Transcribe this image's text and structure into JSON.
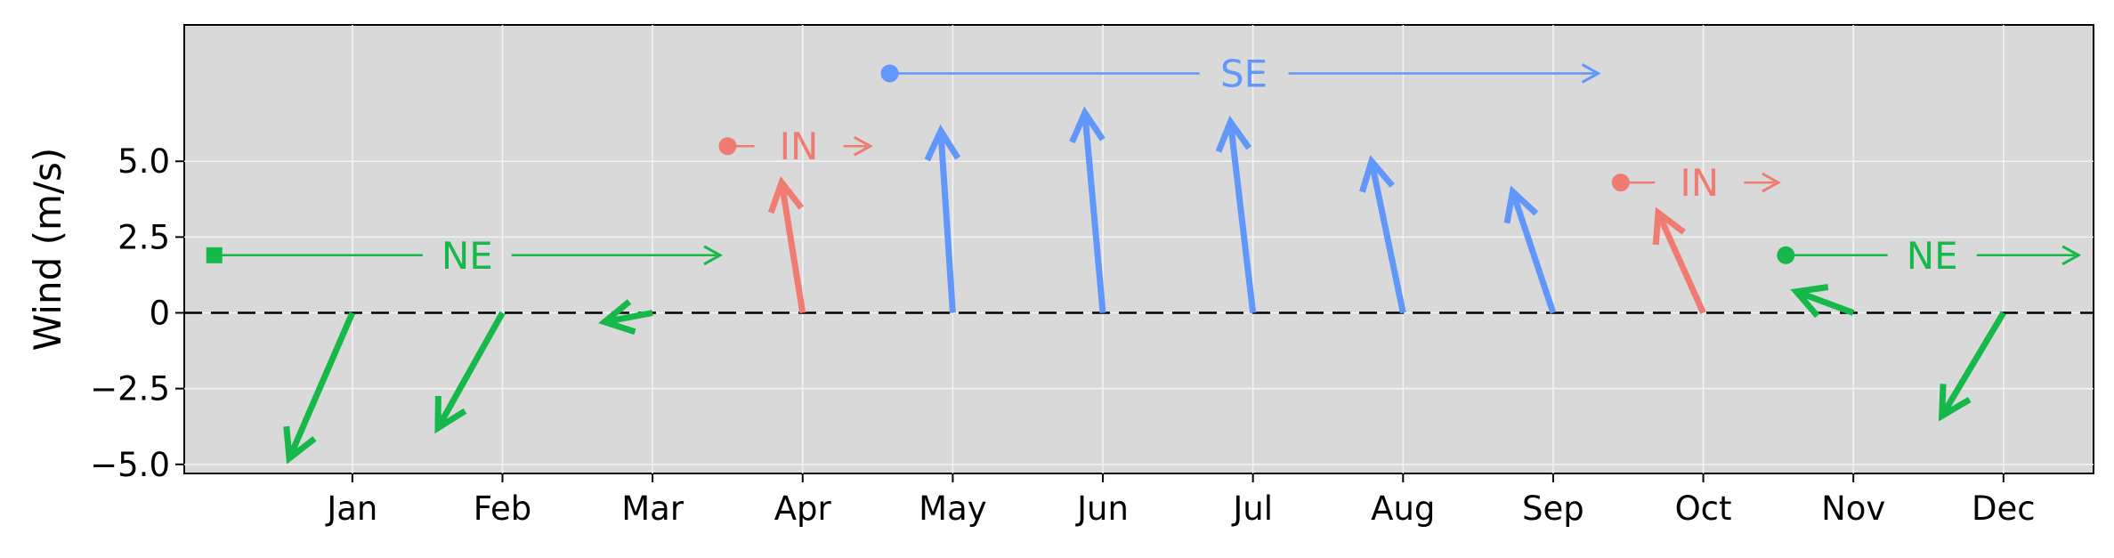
{
  "chart_data": {
    "type": "vector",
    "ylabel": "Wind (m/s)",
    "xlabel": "",
    "ylim": [
      -5.3,
      9.5
    ],
    "xlim": [
      -0.12,
      12.6
    ],
    "yticks": [
      {
        "value": 5.0,
        "label": "5.0"
      },
      {
        "value": 2.5,
        "label": "2.5"
      },
      {
        "value": 0,
        "label": "0"
      },
      {
        "value": -2.5,
        "label": "−2.5"
      },
      {
        "value": -5.0,
        "label": "−5.0"
      }
    ],
    "months": [
      "Jan",
      "Feb",
      "Mar",
      "Apr",
      "May",
      "Jun",
      "Jul",
      "Aug",
      "Sep",
      "Oct",
      "Nov",
      "Dec"
    ],
    "zero_line": "dashed",
    "grid": true,
    "season_colors": {
      "NE": "#17b84a",
      "IN": "#f07b72",
      "SE": "#6196fa"
    },
    "vectors": [
      {
        "month": "Jan",
        "u": -0.42,
        "v": -4.8,
        "season": "NE"
      },
      {
        "month": "Feb",
        "u": -0.43,
        "v": -3.8,
        "season": "NE"
      },
      {
        "month": "Mar",
        "u": -0.32,
        "v": -0.3,
        "season": "NE"
      },
      {
        "month": "Apr",
        "u": -0.14,
        "v": 4.3,
        "season": "IN"
      },
      {
        "month": "May",
        "u": -0.08,
        "v": 6.0,
        "season": "SE"
      },
      {
        "month": "Jun",
        "u": -0.12,
        "v": 6.6,
        "season": "SE"
      },
      {
        "month": "Jul",
        "u": -0.15,
        "v": 6.3,
        "season": "SE"
      },
      {
        "month": "Aug",
        "u": -0.21,
        "v": 5.0,
        "season": "SE"
      },
      {
        "month": "Sep",
        "u": -0.27,
        "v": 4.0,
        "season": "SE"
      },
      {
        "month": "Oct",
        "u": -0.3,
        "v": 3.3,
        "season": "IN"
      },
      {
        "month": "Nov",
        "u": -0.38,
        "v": 0.7,
        "season": "NE"
      },
      {
        "month": "Dec",
        "u": -0.41,
        "v": -3.4,
        "season": "NE"
      }
    ],
    "seasons": [
      {
        "label": "NE",
        "start_month": 0.08,
        "end_month": 3.45,
        "y": 1.9,
        "marker": "square",
        "color": "#17b84a"
      },
      {
        "label": "IN",
        "start_month": 3.5,
        "end_month": 4.45,
        "y": 5.5,
        "marker": "circle",
        "color": "#f07b72"
      },
      {
        "label": "SE",
        "start_month": 4.58,
        "end_month": 9.3,
        "y": 7.9,
        "marker": "circle",
        "color": "#6196fa"
      },
      {
        "label": "IN",
        "start_month": 9.45,
        "end_month": 10.5,
        "y": 4.3,
        "marker": "circle",
        "color": "#f07b72"
      },
      {
        "label": "NE",
        "start_month": 10.55,
        "end_month": 12.5,
        "y": 1.9,
        "marker": "circle",
        "color": "#17b84a"
      }
    ]
  }
}
